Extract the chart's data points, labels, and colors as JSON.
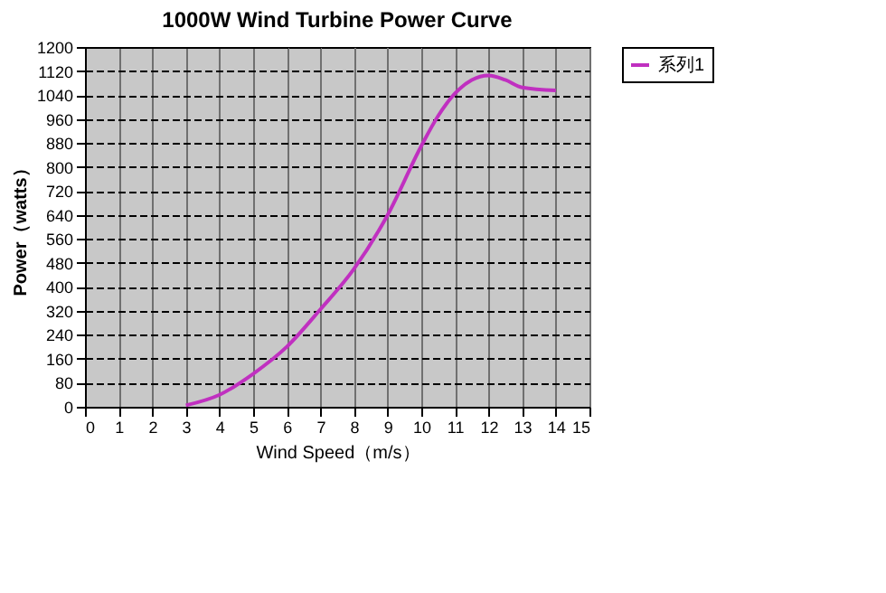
{
  "chart_data": {
    "type": "line",
    "title": "1000W Wind Turbine Power Curve",
    "xlabel": "Wind Speed（m/s）",
    "ylabel": "Power（watts）",
    "x": [
      3,
      4,
      5,
      6,
      7,
      8,
      9,
      10,
      10.5,
      11,
      11.5,
      12,
      12.5,
      13,
      14
    ],
    "series": [
      {
        "name": "系列1",
        "color": "#c030c0",
        "values": [
          5,
          40,
          110,
          200,
          325,
          460,
          640,
          870,
          970,
          1045,
          1090,
          1105,
          1090,
          1065,
          1055
        ]
      }
    ],
    "xlim": [
      0,
      15
    ],
    "xticks": [
      0,
      1,
      2,
      3,
      4,
      5,
      6,
      7,
      8,
      9,
      10,
      11,
      12,
      13,
      14,
      15
    ],
    "ylim": [
      0,
      1200
    ],
    "yticks": [
      0,
      80,
      160,
      240,
      320,
      400,
      480,
      560,
      640,
      720,
      800,
      880,
      960,
      1040,
      1120,
      1200
    ],
    "grid": true,
    "legend": "right",
    "marker": "none",
    "line_style": "solid"
  }
}
